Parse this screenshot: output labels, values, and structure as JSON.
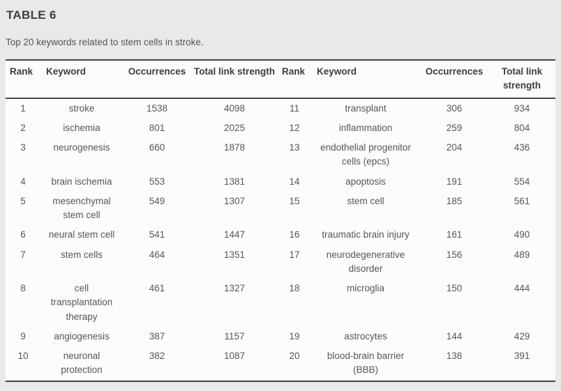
{
  "page": {
    "title": "TABLE 6",
    "caption": "Top 20 keywords related to stem cells in stroke."
  },
  "table": {
    "headers": [
      "Rank",
      "Keyword",
      "Occurrences",
      "Total link strength"
    ],
    "entries": [
      {
        "rank": "1",
        "keyword": "stroke",
        "occurrences": "1538",
        "total_link_strength": "4098"
      },
      {
        "rank": "2",
        "keyword": "ischemia",
        "occurrences": "801",
        "total_link_strength": "2025"
      },
      {
        "rank": "3",
        "keyword": "neurogenesis",
        "occurrences": "660",
        "total_link_strength": "1878"
      },
      {
        "rank": "4",
        "keyword": "brain ischemia",
        "occurrences": "553",
        "total_link_strength": "1381"
      },
      {
        "rank": "5",
        "keyword": "mesenchymal stem cell",
        "occurrences": "549",
        "total_link_strength": "1307"
      },
      {
        "rank": "6",
        "keyword": "neural stem cell",
        "occurrences": "541",
        "total_link_strength": "1447"
      },
      {
        "rank": "7",
        "keyword": "stem cells",
        "occurrences": "464",
        "total_link_strength": "1351"
      },
      {
        "rank": "8",
        "keyword": "cell transplantation therapy",
        "occurrences": "461",
        "total_link_strength": "1327"
      },
      {
        "rank": "9",
        "keyword": "angiogenesis",
        "occurrences": "387",
        "total_link_strength": "1157"
      },
      {
        "rank": "10",
        "keyword": "neuronal protection",
        "occurrences": "382",
        "total_link_strength": "1087"
      },
      {
        "rank": "11",
        "keyword": "transplant",
        "occurrences": "306",
        "total_link_strength": "934"
      },
      {
        "rank": "12",
        "keyword": "inflammation",
        "occurrences": "259",
        "total_link_strength": "804"
      },
      {
        "rank": "13",
        "keyword": "endothelial progenitor cells (epcs)",
        "occurrences": "204",
        "total_link_strength": "436"
      },
      {
        "rank": "14",
        "keyword": "apoptosis",
        "occurrences": "191",
        "total_link_strength": "554"
      },
      {
        "rank": "15",
        "keyword": "stem cell",
        "occurrences": "185",
        "total_link_strength": "561"
      },
      {
        "rank": "16",
        "keyword": "traumatic brain injury",
        "occurrences": "161",
        "total_link_strength": "490"
      },
      {
        "rank": "17",
        "keyword": "neurodegenerative disorder",
        "occurrences": "156",
        "total_link_strength": "489"
      },
      {
        "rank": "18",
        "keyword": "microglia",
        "occurrences": "150",
        "total_link_strength": "444"
      },
      {
        "rank": "19",
        "keyword": "astrocytes",
        "occurrences": "144",
        "total_link_strength": "429"
      },
      {
        "rank": "20",
        "keyword": "blood-brain barrier (BBB)",
        "occurrences": "138",
        "total_link_strength": "391"
      }
    ]
  },
  "colors": {
    "page_bg": "#e9e9e9",
    "table_bg": "#fcfcfc",
    "border": "#464646",
    "header_text": "#3d3d3d",
    "body_text": "#565656"
  }
}
